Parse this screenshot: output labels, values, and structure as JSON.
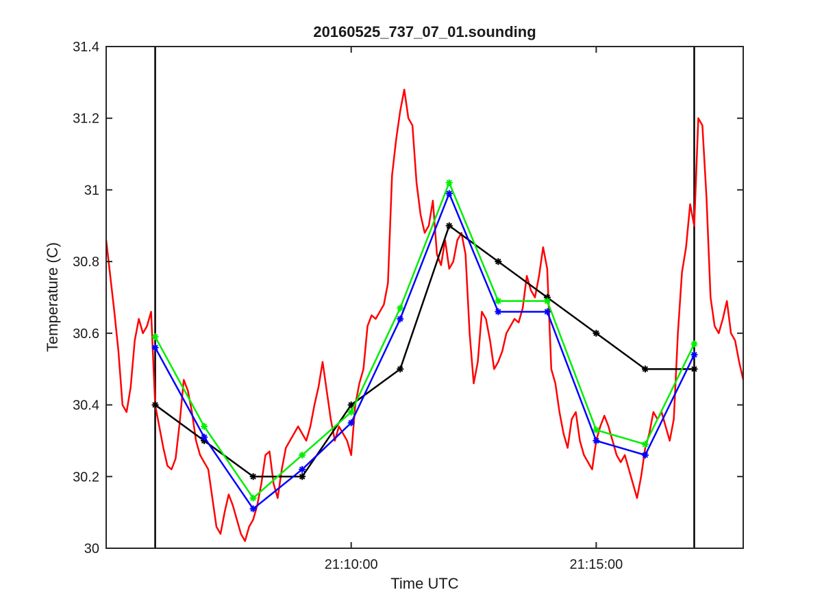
{
  "chart_data": {
    "type": "line",
    "title": "20160525_737_07_01.sounding",
    "xlabel": "Time UTC",
    "ylabel": "Temperature (C)",
    "xlim": [
      "21:05:00",
      "21:18:00"
    ],
    "ylim": [
      30,
      31.4
    ],
    "x_ticks": [
      {
        "time": "21:10:00",
        "label": "21:10:00"
      },
      {
        "time": "21:15:00",
        "label": "21:15:00"
      }
    ],
    "y_ticks": [
      {
        "value": 30,
        "label": "30"
      },
      {
        "value": 30.2,
        "label": "30.2"
      },
      {
        "value": 30.4,
        "label": "30.4"
      },
      {
        "value": 30.6,
        "label": "30.6"
      },
      {
        "value": 30.8,
        "label": "30.8"
      },
      {
        "value": 31,
        "label": "31"
      },
      {
        "value": 31.2,
        "label": "31.2"
      },
      {
        "value": 31.4,
        "label": "31.4"
      }
    ],
    "grid": false,
    "vertical_lines": [
      "21:06:00",
      "21:17:00"
    ],
    "series": [
      {
        "color": "#ff0000",
        "marker": "none",
        "points": [
          [
            "21:05:00",
            30.86
          ],
          [
            "21:05:05",
            30.76
          ],
          [
            "21:05:10",
            30.66
          ],
          [
            "21:05:15",
            30.55
          ],
          [
            "21:05:20",
            30.4
          ],
          [
            "21:05:25",
            30.38
          ],
          [
            "21:05:30",
            30.45
          ],
          [
            "21:05:35",
            30.58
          ],
          [
            "21:05:40",
            30.64
          ],
          [
            "21:05:45",
            30.6
          ],
          [
            "21:05:50",
            30.62
          ],
          [
            "21:05:55",
            30.66
          ],
          [
            "21:06:00",
            30.4
          ],
          [
            "21:06:05",
            30.34
          ],
          [
            "21:06:10",
            30.28
          ],
          [
            "21:06:15",
            30.23
          ],
          [
            "21:06:20",
            30.22
          ],
          [
            "21:06:25",
            30.25
          ],
          [
            "21:06:30",
            30.35
          ],
          [
            "21:06:35",
            30.47
          ],
          [
            "21:06:40",
            30.44
          ],
          [
            "21:06:45",
            30.38
          ],
          [
            "21:06:50",
            30.3
          ],
          [
            "21:06:55",
            30.26
          ],
          [
            "21:07:00",
            30.24
          ],
          [
            "21:07:05",
            30.22
          ],
          [
            "21:07:10",
            30.14
          ],
          [
            "21:07:15",
            30.06
          ],
          [
            "21:07:20",
            30.04
          ],
          [
            "21:07:25",
            30.1
          ],
          [
            "21:07:30",
            30.15
          ],
          [
            "21:07:35",
            30.12
          ],
          [
            "21:07:40",
            30.08
          ],
          [
            "21:07:45",
            30.04
          ],
          [
            "21:07:50",
            30.02
          ],
          [
            "21:07:55",
            30.06
          ],
          [
            "21:08:00",
            30.08
          ],
          [
            "21:08:05",
            30.12
          ],
          [
            "21:08:10",
            30.18
          ],
          [
            "21:08:15",
            30.26
          ],
          [
            "21:08:20",
            30.27
          ],
          [
            "21:08:25",
            30.18
          ],
          [
            "21:08:30",
            30.14
          ],
          [
            "21:08:35",
            30.22
          ],
          [
            "21:08:40",
            30.28
          ],
          [
            "21:08:45",
            30.3
          ],
          [
            "21:08:50",
            30.32
          ],
          [
            "21:08:55",
            30.34
          ],
          [
            "21:09:00",
            30.32
          ],
          [
            "21:09:05",
            30.3
          ],
          [
            "21:09:10",
            30.34
          ],
          [
            "21:09:15",
            30.4
          ],
          [
            "21:09:20",
            30.45
          ],
          [
            "21:09:25",
            30.52
          ],
          [
            "21:09:30",
            30.44
          ],
          [
            "21:09:35",
            30.36
          ],
          [
            "21:09:40",
            30.3
          ],
          [
            "21:09:45",
            30.34
          ],
          [
            "21:09:50",
            30.32
          ],
          [
            "21:09:55",
            30.3
          ],
          [
            "21:10:00",
            30.26
          ],
          [
            "21:10:05",
            30.4
          ],
          [
            "21:10:10",
            30.46
          ],
          [
            "21:10:15",
            30.5
          ],
          [
            "21:10:20",
            30.62
          ],
          [
            "21:10:25",
            30.65
          ],
          [
            "21:10:30",
            30.64
          ],
          [
            "21:10:35",
            30.66
          ],
          [
            "21:10:40",
            30.68
          ],
          [
            "21:10:45",
            30.74
          ],
          [
            "21:10:50",
            31.04
          ],
          [
            "21:10:55",
            31.14
          ],
          [
            "21:11:00",
            31.22
          ],
          [
            "21:11:05",
            31.28
          ],
          [
            "21:11:10",
            31.2
          ],
          [
            "21:11:15",
            31.18
          ],
          [
            "21:11:20",
            31.02
          ],
          [
            "21:11:25",
            30.93
          ],
          [
            "21:11:30",
            30.88
          ],
          [
            "21:11:35",
            30.9
          ],
          [
            "21:11:40",
            30.97
          ],
          [
            "21:11:45",
            30.82
          ],
          [
            "21:11:50",
            30.79
          ],
          [
            "21:11:55",
            30.86
          ],
          [
            "21:12:00",
            30.78
          ],
          [
            "21:12:05",
            30.8
          ],
          [
            "21:12:10",
            30.86
          ],
          [
            "21:12:15",
            30.88
          ],
          [
            "21:12:20",
            30.82
          ],
          [
            "21:12:25",
            30.6
          ],
          [
            "21:12:30",
            30.46
          ],
          [
            "21:12:35",
            30.52
          ],
          [
            "21:12:40",
            30.66
          ],
          [
            "21:12:45",
            30.64
          ],
          [
            "21:12:50",
            30.58
          ],
          [
            "21:12:55",
            30.5
          ],
          [
            "21:13:00",
            30.52
          ],
          [
            "21:13:05",
            30.55
          ],
          [
            "21:13:10",
            30.6
          ],
          [
            "21:13:15",
            30.62
          ],
          [
            "21:13:20",
            30.64
          ],
          [
            "21:13:25",
            30.63
          ],
          [
            "21:13:30",
            30.67
          ],
          [
            "21:13:35",
            30.76
          ],
          [
            "21:13:40",
            30.72
          ],
          [
            "21:13:45",
            30.7
          ],
          [
            "21:13:50",
            30.76
          ],
          [
            "21:13:55",
            30.84
          ],
          [
            "21:14:00",
            30.78
          ],
          [
            "21:14:05",
            30.5
          ],
          [
            "21:14:10",
            30.46
          ],
          [
            "21:14:15",
            30.38
          ],
          [
            "21:14:20",
            30.32
          ],
          [
            "21:14:25",
            30.28
          ],
          [
            "21:14:30",
            30.36
          ],
          [
            "21:14:35",
            30.38
          ],
          [
            "21:14:40",
            30.3
          ],
          [
            "21:14:45",
            30.26
          ],
          [
            "21:14:50",
            30.24
          ],
          [
            "21:14:55",
            30.22
          ],
          [
            "21:15:00",
            30.3
          ],
          [
            "21:15:05",
            30.34
          ],
          [
            "21:15:10",
            30.37
          ],
          [
            "21:15:15",
            30.34
          ],
          [
            "21:15:20",
            30.3
          ],
          [
            "21:15:25",
            30.26
          ],
          [
            "21:15:30",
            30.24
          ],
          [
            "21:15:35",
            30.26
          ],
          [
            "21:15:40",
            30.22
          ],
          [
            "21:15:45",
            30.18
          ],
          [
            "21:15:50",
            30.14
          ],
          [
            "21:15:55",
            30.2
          ],
          [
            "21:16:00",
            30.28
          ],
          [
            "21:16:05",
            30.32
          ],
          [
            "21:16:10",
            30.38
          ],
          [
            "21:16:15",
            30.36
          ],
          [
            "21:16:20",
            30.38
          ],
          [
            "21:16:25",
            30.34
          ],
          [
            "21:16:30",
            30.3
          ],
          [
            "21:16:35",
            30.36
          ],
          [
            "21:16:40",
            30.6
          ],
          [
            "21:16:45",
            30.77
          ],
          [
            "21:16:50",
            30.84
          ],
          [
            "21:16:55",
            30.96
          ],
          [
            "21:17:00",
            30.9
          ],
          [
            "21:17:05",
            31.2
          ],
          [
            "21:17:10",
            31.18
          ],
          [
            "21:17:15",
            30.98
          ],
          [
            "21:17:20",
            30.7
          ],
          [
            "21:17:25",
            30.62
          ],
          [
            "21:17:30",
            30.6
          ],
          [
            "21:17:35",
            30.64
          ],
          [
            "21:17:40",
            30.69
          ],
          [
            "21:17:45",
            30.6
          ],
          [
            "21:17:50",
            30.58
          ],
          [
            "21:17:55",
            30.52
          ],
          [
            "21:18:00",
            30.47
          ]
        ]
      },
      {
        "color": "#000000",
        "marker": "asterisk",
        "points": [
          [
            "21:06:00",
            30.4
          ],
          [
            "21:07:00",
            30.3
          ],
          [
            "21:08:00",
            30.2
          ],
          [
            "21:09:00",
            30.2
          ],
          [
            "21:10:00",
            30.4
          ],
          [
            "21:11:00",
            30.5
          ],
          [
            "21:12:00",
            30.9
          ],
          [
            "21:13:00",
            30.8
          ],
          [
            "21:14:00",
            30.7
          ],
          [
            "21:15:00",
            30.6
          ],
          [
            "21:16:00",
            30.5
          ],
          [
            "21:17:00",
            30.5
          ]
        ]
      },
      {
        "color": "#00ee00",
        "marker": "asterisk",
        "points": [
          [
            "21:06:00",
            30.59
          ],
          [
            "21:07:00",
            30.34
          ],
          [
            "21:08:00",
            30.14
          ],
          [
            "21:09:00",
            30.26
          ],
          [
            "21:10:00",
            30.38
          ],
          [
            "21:11:00",
            30.67
          ],
          [
            "21:12:00",
            31.02
          ],
          [
            "21:13:00",
            30.69
          ],
          [
            "21:14:00",
            30.69
          ],
          [
            "21:15:00",
            30.33
          ],
          [
            "21:16:00",
            30.29
          ],
          [
            "21:17:00",
            30.57
          ]
        ]
      },
      {
        "color": "#0000ff",
        "marker": "asterisk",
        "points": [
          [
            "21:06:00",
            30.56
          ],
          [
            "21:07:00",
            30.31
          ],
          [
            "21:08:00",
            30.11
          ],
          [
            "21:09:00",
            30.22
          ],
          [
            "21:10:00",
            30.35
          ],
          [
            "21:11:00",
            30.64
          ],
          [
            "21:12:00",
            30.99
          ],
          [
            "21:13:00",
            30.66
          ],
          [
            "21:14:00",
            30.66
          ],
          [
            "21:15:00",
            30.3
          ],
          [
            "21:16:00",
            30.26
          ],
          [
            "21:17:00",
            30.54
          ]
        ]
      }
    ]
  }
}
